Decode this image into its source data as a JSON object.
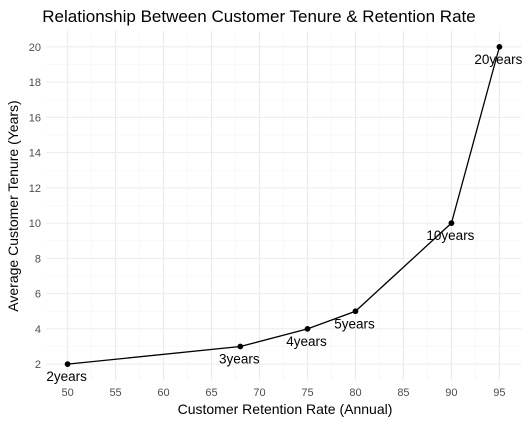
{
  "chart_data": {
    "type": "line",
    "title": "Relationship Between Customer Tenure & Retention Rate",
    "xlabel": "Customer Retention Rate (Annual)",
    "ylabel": "Average Customer Tenure (Years)",
    "xlim": [
      47.75,
      97.25
    ],
    "ylim": [
      1.1,
      20.9
    ],
    "xticks": [
      50,
      55,
      60,
      65,
      70,
      75,
      80,
      85,
      90,
      95
    ],
    "yticks": [
      2,
      4,
      6,
      8,
      10,
      12,
      14,
      16,
      18,
      20
    ],
    "grid": true,
    "legend": "none",
    "series": [
      {
        "x": [
          50,
          68,
          75,
          80,
          90,
          95
        ],
        "y": [
          2,
          3,
          4,
          5,
          10,
          20
        ],
        "labels": [
          "2years",
          "3years",
          "4years",
          "5years",
          "10years",
          "20years"
        ]
      }
    ],
    "colors": {
      "line": "#000000",
      "grid": "#ebebeb",
      "background": "#ffffff"
    }
  }
}
